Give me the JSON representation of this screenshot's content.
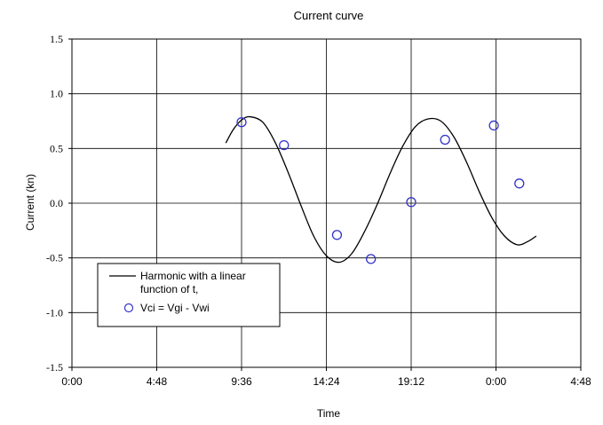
{
  "chart_data": {
    "type": "scatter",
    "title": "Current curve",
    "xlabel": "Time",
    "ylabel": "Current (kn)",
    "xlim": [
      0,
      1.2
    ],
    "ylim": [
      -1.5,
      1.5
    ],
    "x_tick_values": [
      0,
      0.2,
      0.4,
      0.6,
      0.8,
      1.0,
      1.2
    ],
    "x_tick_labels": [
      "0:00",
      "4:48",
      "9:36",
      "14:24",
      "19:12",
      "0:00",
      "4:48"
    ],
    "y_tick_values": [
      1.5,
      1.0,
      0.5,
      0.0,
      -0.5,
      -1.0,
      -1.5
    ],
    "y_tick_labels": [
      "1.5",
      "1.0",
      "0.5",
      "0.0",
      "-0.5",
      "-1.0",
      "-1.5"
    ],
    "grid": true,
    "legend_position": "bottom-left",
    "series": [
      {
        "name": "Harmonic with a linear function of t,",
        "kind": "line",
        "color": "#000000",
        "x": [
          0.363,
          0.38,
          0.4,
          0.42,
          0.45,
          0.48,
          0.51,
          0.54,
          0.57,
          0.6,
          0.63,
          0.66,
          0.69,
          0.72,
          0.75,
          0.78,
          0.81,
          0.84,
          0.87,
          0.9,
          0.93,
          0.96,
          0.99,
          1.02,
          1.05,
          1.075,
          1.095
        ],
        "y": [
          0.55,
          0.67,
          0.76,
          0.79,
          0.74,
          0.55,
          0.28,
          -0.02,
          -0.3,
          -0.48,
          -0.54,
          -0.46,
          -0.26,
          -0.01,
          0.27,
          0.52,
          0.7,
          0.77,
          0.75,
          0.61,
          0.38,
          0.11,
          -0.13,
          -0.3,
          -0.38,
          -0.35,
          -0.3
        ]
      },
      {
        "name": "Vci = Vgi - Vwi",
        "kind": "scatter",
        "color": "#3333cc",
        "x": [
          0.4,
          0.5,
          0.625,
          0.705,
          0.8,
          0.88,
          0.995,
          1.055
        ],
        "y": [
          0.74,
          0.53,
          -0.29,
          -0.51,
          0.01,
          0.58,
          0.71,
          0.18
        ]
      }
    ]
  }
}
